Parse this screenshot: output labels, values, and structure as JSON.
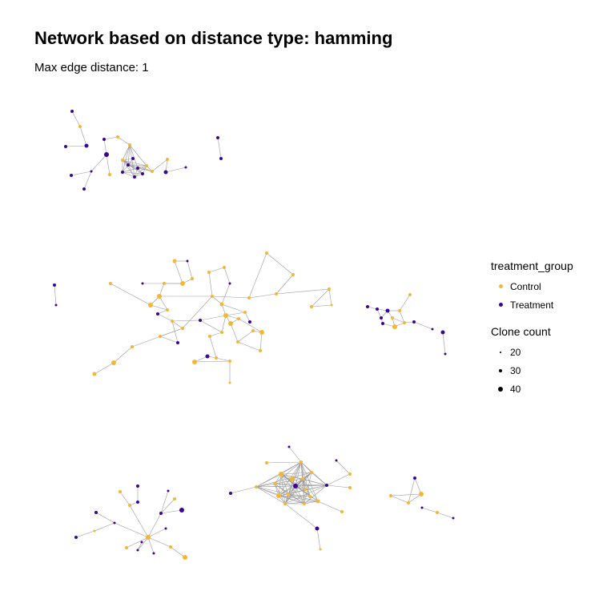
{
  "header": {
    "title": "Network based on distance type: hamming",
    "subtitle": "Max edge distance: 1"
  },
  "legend": {
    "color_title": "treatment_group",
    "color_items": [
      {
        "label": "Control",
        "color": "#F5B731"
      },
      {
        "label": "Treatment",
        "color": "#3D0591"
      }
    ],
    "size_title": "Clone count",
    "size_items": [
      {
        "label": "20"
      },
      {
        "label": "30"
      },
      {
        "label": "40"
      }
    ]
  },
  "colors": {
    "control": "#F5B731",
    "treatment": "#3D0591",
    "edge": "#9a9a9a"
  }
}
